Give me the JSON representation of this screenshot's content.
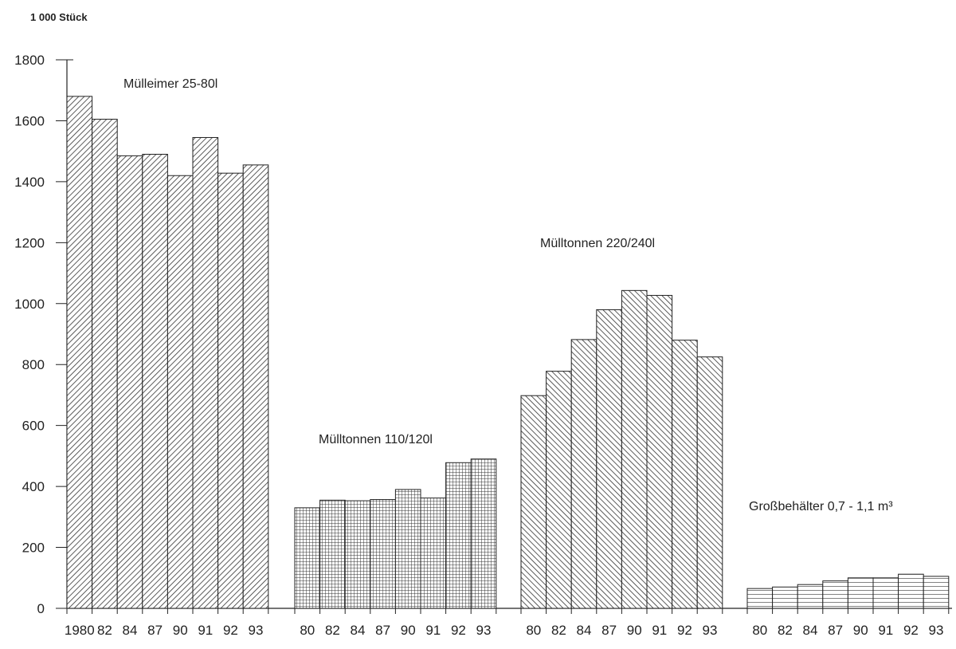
{
  "chart_data": {
    "type": "bar",
    "title": "",
    "ylabel": "1 000 Stück",
    "xlabel": "",
    "ylim": [
      0,
      1800
    ],
    "yticks": [
      0,
      200,
      400,
      600,
      800,
      1000,
      1200,
      1400,
      1600,
      1800
    ],
    "grid": false,
    "groups": [
      {
        "name": "Mülleimer 25-80l",
        "pattern": "diag-fine",
        "categories": [
          "1980",
          "82",
          "84",
          "87",
          "90",
          "91",
          "92",
          "93"
        ],
        "values": [
          1680,
          1605,
          1485,
          1490,
          1420,
          1545,
          1428,
          1455
        ]
      },
      {
        "name": "Mülltonnen 110/120l",
        "pattern": "grid",
        "categories": [
          "80",
          "82",
          "84",
          "87",
          "90",
          "91",
          "92",
          "93"
        ],
        "values": [
          330,
          355,
          353,
          357,
          390,
          362,
          478,
          490
        ]
      },
      {
        "name": "Mülltonnen 220/240l",
        "pattern": "diag-back",
        "categories": [
          "80",
          "82",
          "84",
          "87",
          "90",
          "91",
          "92",
          "93"
        ],
        "values": [
          698,
          778,
          882,
          980,
          1043,
          1027,
          880,
          825
        ]
      },
      {
        "name": "Großbehälter 0,7 - 1,1 m³",
        "pattern": "horizontal",
        "categories": [
          "80",
          "82",
          "84",
          "87",
          "90",
          "91",
          "92",
          "93"
        ],
        "values": [
          65,
          70,
          78,
          90,
          100,
          100,
          112,
          105
        ]
      }
    ]
  }
}
